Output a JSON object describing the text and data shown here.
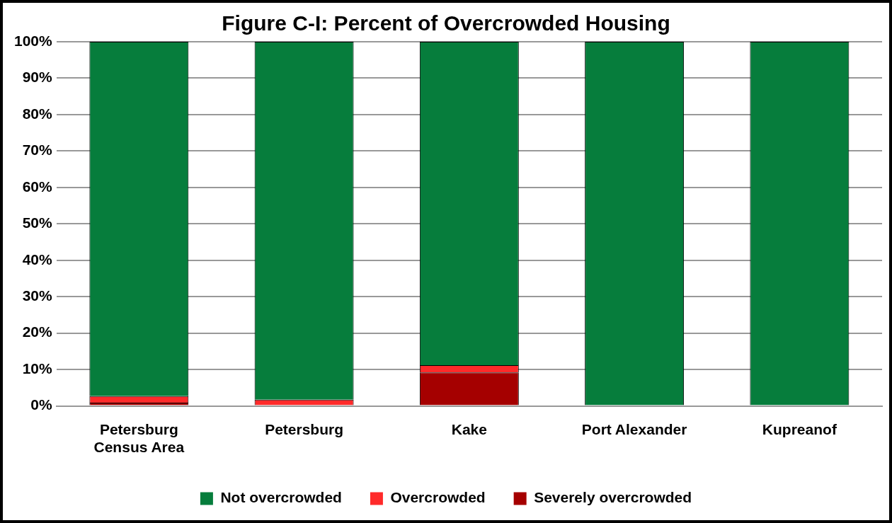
{
  "chart_data": {
    "type": "bar",
    "title": "Figure C-I: Percent of Overcrowded Housing",
    "categories": [
      "Petersburg Census Area",
      "Petersburg",
      "Kake",
      "Port Alexander",
      "Kupreanof"
    ],
    "stacked": true,
    "series": [
      {
        "name": "Severely overcrowded",
        "color": "#a50000",
        "values": [
          0.9,
          0,
          9.2,
          0,
          0
        ]
      },
      {
        "name": "Overcrowded",
        "color": "#ff2a2a",
        "values": [
          1.8,
          1.7,
          2.0,
          0,
          0
        ]
      },
      {
        "name": "Not overcrowded",
        "color": "#067d3c",
        "values": [
          97.3,
          98.3,
          88.8,
          100,
          100
        ]
      }
    ],
    "ylim": [
      0,
      100
    ],
    "yticks": [
      {
        "value": 0,
        "label": "0%"
      },
      {
        "value": 10,
        "label": "10%"
      },
      {
        "value": 20,
        "label": "20%"
      },
      {
        "value": 30,
        "label": "30%"
      },
      {
        "value": 40,
        "label": "40%"
      },
      {
        "value": 50,
        "label": "50%"
      },
      {
        "value": 60,
        "label": "60%"
      },
      {
        "value": 70,
        "label": "70%"
      },
      {
        "value": 80,
        "label": "80%"
      },
      {
        "value": 90,
        "label": "90%"
      },
      {
        "value": 100,
        "label": "100%"
      }
    ],
    "grid": "y",
    "legend": "bottom"
  }
}
